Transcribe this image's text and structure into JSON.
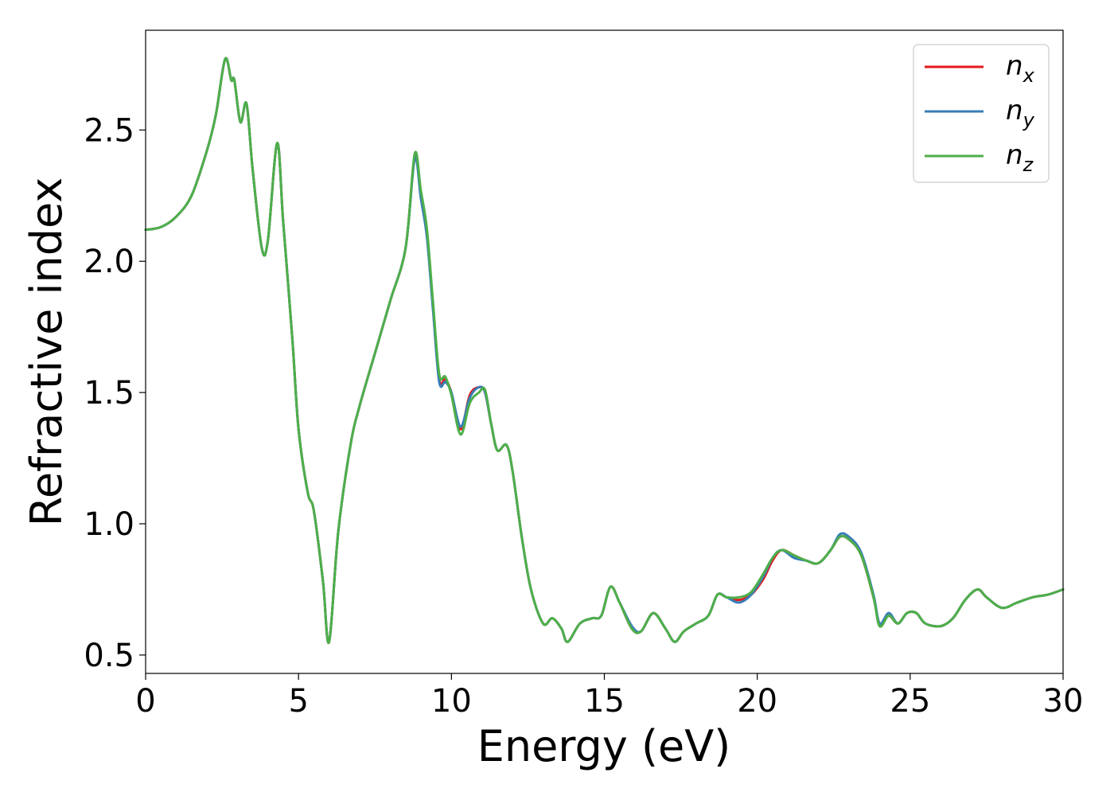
{
  "chart_data": {
    "type": "line",
    "xlabel": "Energy (eV)",
    "ylabel": "Refractive index",
    "xlim": [
      0,
      30
    ],
    "ylim": [
      0.43,
      2.88
    ],
    "x_ticks": [
      "0",
      "5",
      "10",
      "15",
      "20",
      "25",
      "30"
    ],
    "y_ticks": [
      "0.5",
      "1.0",
      "1.5",
      "2.0",
      "2.5"
    ],
    "grid": false,
    "legend_position": "top-right",
    "x": [
      0,
      0.5,
      1.0,
      1.5,
      2.0,
      2.3,
      2.6,
      2.8,
      2.9,
      3.1,
      3.3,
      3.5,
      3.8,
      4.0,
      4.3,
      4.5,
      4.8,
      5.0,
      5.3,
      5.5,
      5.8,
      6.0,
      6.3,
      6.7,
      7.0,
      7.5,
      8.0,
      8.5,
      8.8,
      9.0,
      9.2,
      9.4,
      9.6,
      9.8,
      10.0,
      10.3,
      10.6,
      10.9,
      11.1,
      11.3,
      11.5,
      11.8,
      12.0,
      12.3,
      12.6,
      13.0,
      13.3,
      13.6,
      13.8,
      14.2,
      14.6,
      14.9,
      15.2,
      15.5,
      15.9,
      16.2,
      16.6,
      17.0,
      17.3,
      17.6,
      18.0,
      18.4,
      18.7,
      19.0,
      19.4,
      19.8,
      20.2,
      20.5,
      20.8,
      21.2,
      21.6,
      22.0,
      22.4,
      22.7,
      23.0,
      23.4,
      23.8,
      24.0,
      24.3,
      24.6,
      24.9,
      25.2,
      25.5,
      26.0,
      26.4,
      26.8,
      27.2,
      27.5,
      28.0,
      28.5,
      29.0,
      29.5,
      30.0
    ],
    "series": [
      {
        "name": "n",
        "subscript": "x",
        "color": "#e41a1c",
        "values": [
          2.12,
          2.13,
          2.17,
          2.25,
          2.42,
          2.56,
          2.77,
          2.69,
          2.69,
          2.53,
          2.6,
          2.35,
          2.05,
          2.08,
          2.45,
          2.15,
          1.7,
          1.36,
          1.12,
          1.05,
          0.78,
          0.55,
          0.97,
          1.3,
          1.45,
          1.65,
          1.85,
          2.05,
          2.4,
          2.25,
          2.1,
          1.82,
          1.55,
          1.55,
          1.5,
          1.36,
          1.49,
          1.52,
          1.5,
          1.38,
          1.28,
          1.3,
          1.2,
          0.95,
          0.75,
          0.62,
          0.64,
          0.6,
          0.55,
          0.62,
          0.64,
          0.65,
          0.76,
          0.7,
          0.6,
          0.59,
          0.66,
          0.6,
          0.55,
          0.59,
          0.62,
          0.65,
          0.73,
          0.72,
          0.71,
          0.73,
          0.79,
          0.86,
          0.9,
          0.88,
          0.86,
          0.85,
          0.9,
          0.95,
          0.94,
          0.88,
          0.72,
          0.62,
          0.65,
          0.62,
          0.66,
          0.66,
          0.62,
          0.61,
          0.64,
          0.71,
          0.75,
          0.72,
          0.68,
          0.7,
          0.72,
          0.73,
          0.75
        ]
      },
      {
        "name": "n",
        "subscript": "y",
        "color": "#377eb8",
        "values": [
          2.12,
          2.13,
          2.17,
          2.25,
          2.42,
          2.56,
          2.77,
          2.69,
          2.69,
          2.53,
          2.6,
          2.35,
          2.05,
          2.08,
          2.45,
          2.15,
          1.7,
          1.36,
          1.12,
          1.05,
          0.78,
          0.55,
          0.97,
          1.3,
          1.45,
          1.65,
          1.85,
          2.05,
          2.39,
          2.24,
          2.09,
          1.81,
          1.54,
          1.54,
          1.5,
          1.37,
          1.48,
          1.52,
          1.5,
          1.38,
          1.28,
          1.3,
          1.2,
          0.95,
          0.75,
          0.62,
          0.64,
          0.6,
          0.55,
          0.62,
          0.64,
          0.65,
          0.76,
          0.7,
          0.61,
          0.59,
          0.66,
          0.6,
          0.55,
          0.59,
          0.62,
          0.65,
          0.73,
          0.72,
          0.7,
          0.73,
          0.8,
          0.87,
          0.9,
          0.87,
          0.86,
          0.85,
          0.9,
          0.96,
          0.95,
          0.89,
          0.73,
          0.62,
          0.66,
          0.62,
          0.66,
          0.66,
          0.62,
          0.61,
          0.64,
          0.71,
          0.75,
          0.72,
          0.68,
          0.7,
          0.72,
          0.73,
          0.75
        ]
      },
      {
        "name": "n",
        "subscript": "z",
        "color": "#4daf4a",
        "values": [
          2.12,
          2.13,
          2.17,
          2.25,
          2.42,
          2.56,
          2.77,
          2.69,
          2.69,
          2.53,
          2.6,
          2.35,
          2.05,
          2.08,
          2.45,
          2.15,
          1.7,
          1.36,
          1.12,
          1.05,
          0.78,
          0.55,
          0.97,
          1.3,
          1.45,
          1.65,
          1.85,
          2.05,
          2.41,
          2.27,
          2.12,
          1.84,
          1.57,
          1.56,
          1.49,
          1.34,
          1.46,
          1.5,
          1.51,
          1.38,
          1.28,
          1.3,
          1.2,
          0.95,
          0.75,
          0.62,
          0.64,
          0.6,
          0.55,
          0.62,
          0.64,
          0.65,
          0.76,
          0.7,
          0.6,
          0.59,
          0.66,
          0.6,
          0.55,
          0.59,
          0.62,
          0.65,
          0.73,
          0.72,
          0.72,
          0.74,
          0.81,
          0.87,
          0.9,
          0.88,
          0.86,
          0.85,
          0.9,
          0.95,
          0.94,
          0.88,
          0.72,
          0.61,
          0.65,
          0.62,
          0.66,
          0.66,
          0.62,
          0.61,
          0.64,
          0.71,
          0.75,
          0.72,
          0.68,
          0.7,
          0.72,
          0.73,
          0.75
        ]
      }
    ]
  }
}
